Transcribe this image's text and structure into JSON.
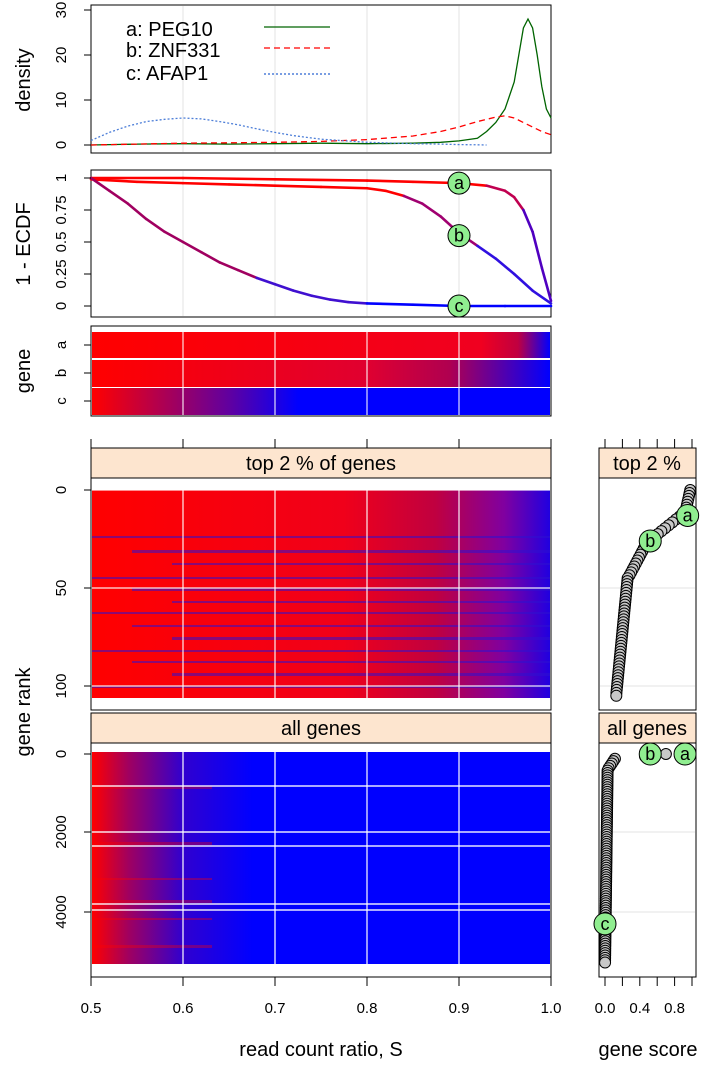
{
  "colors": {
    "red": "#ff0000",
    "blue": "#0000ff",
    "strip": "#fde5cf",
    "green": "#006400",
    "blueDot": "#4e7fd8",
    "badge": "#90ee90",
    "grid": "#e3e3e3"
  },
  "chart_data": [
    {
      "id": "density",
      "type": "line",
      "ylabel": "density",
      "ylim": [
        0,
        30
      ],
      "yticks": [
        "0",
        "10",
        "20",
        "30"
      ],
      "legend": {
        "position": "top-left"
      },
      "series": [
        {
          "name": "a: PEG10",
          "color": "#006400",
          "dash": "solid",
          "x": [
            0.5,
            0.55,
            0.6,
            0.65,
            0.7,
            0.75,
            0.8,
            0.85,
            0.88,
            0.9,
            0.92,
            0.93,
            0.94,
            0.95,
            0.96,
            0.965,
            0.97,
            0.975,
            0.98,
            0.985,
            0.99,
            0.995,
            1.0
          ],
          "y": [
            0,
            0.2,
            0.3,
            0.2,
            0.3,
            0.4,
            0.3,
            0.4,
            0.6,
            0.9,
            1.5,
            3,
            5,
            8,
            14,
            20,
            26,
            28,
            26,
            20,
            13,
            8,
            6
          ]
        },
        {
          "name": "b: ZNF331",
          "color": "#ff0000",
          "dash": "6,4",
          "x": [
            0.5,
            0.55,
            0.6,
            0.65,
            0.7,
            0.75,
            0.8,
            0.85,
            0.88,
            0.9,
            0.92,
            0.94,
            0.95,
            0.96,
            0.97,
            0.98,
            0.99,
            1.0
          ],
          "y": [
            0,
            0.2,
            0.4,
            0.5,
            0.6,
            0.8,
            1.2,
            2.0,
            3.0,
            4.0,
            5.2,
            6.2,
            6.5,
            6.0,
            5.0,
            4.0,
            3.0,
            2.3
          ]
        },
        {
          "name": "c: AFAP1",
          "color": "#4e7fd8",
          "dash": "2,2",
          "x": [
            0.5,
            0.52,
            0.54,
            0.56,
            0.58,
            0.6,
            0.62,
            0.64,
            0.66,
            0.68,
            0.7,
            0.72,
            0.75,
            0.8,
            0.85,
            0.88,
            0.9,
            0.92,
            0.93
          ],
          "y": [
            1.0,
            2.8,
            4.2,
            5.2,
            5.7,
            6.0,
            5.8,
            5.2,
            4.5,
            3.6,
            2.8,
            2.1,
            1.3,
            0.6,
            0.3,
            0.2,
            0.1,
            0.05,
            0
          ]
        }
      ]
    },
    {
      "id": "ecdf",
      "type": "line",
      "ylabel": "1 - ECDF",
      "ylim": [
        0,
        1
      ],
      "yticks": [
        "0",
        "0.25",
        "0.5",
        "0.75",
        "1"
      ],
      "series": [
        {
          "name": "a",
          "x": [
            0.5,
            0.6,
            0.7,
            0.8,
            0.85,
            0.9,
            0.93,
            0.95,
            0.96,
            0.97,
            0.98,
            0.99,
            1.0
          ],
          "y": [
            1.0,
            1.0,
            0.99,
            0.98,
            0.97,
            0.96,
            0.94,
            0.9,
            0.85,
            0.75,
            0.58,
            0.3,
            0.04
          ]
        },
        {
          "name": "b",
          "x": [
            0.5,
            0.55,
            0.6,
            0.65,
            0.7,
            0.75,
            0.8,
            0.82,
            0.84,
            0.86,
            0.88,
            0.9,
            0.92,
            0.94,
            0.96,
            0.98,
            1.0
          ],
          "y": [
            0.99,
            0.97,
            0.96,
            0.95,
            0.94,
            0.93,
            0.92,
            0.9,
            0.86,
            0.8,
            0.7,
            0.57,
            0.47,
            0.37,
            0.25,
            0.12,
            0.02
          ]
        },
        {
          "name": "c",
          "x": [
            0.5,
            0.52,
            0.54,
            0.56,
            0.58,
            0.6,
            0.62,
            0.64,
            0.66,
            0.68,
            0.7,
            0.72,
            0.74,
            0.76,
            0.78,
            0.8,
            0.85,
            0.9,
            0.95,
            1.0
          ],
          "y": [
            1.0,
            0.9,
            0.8,
            0.68,
            0.58,
            0.5,
            0.42,
            0.34,
            0.28,
            0.22,
            0.17,
            0.12,
            0.08,
            0.05,
            0.03,
            0.02,
            0.01,
            0.0,
            0.0,
            0.0
          ]
        }
      ],
      "markers": [
        {
          "label": "a",
          "x": 0.9,
          "y": 0.96
        },
        {
          "label": "b",
          "x": 0.9,
          "y": 0.55
        },
        {
          "label": "c",
          "x": 0.9,
          "y": 0.0
        }
      ]
    },
    {
      "id": "gene-heat",
      "type": "heatmap",
      "ylabel": "gene",
      "rows": [
        "a",
        "b",
        "c"
      ],
      "transition": [
        0.97,
        0.87,
        0.58
      ]
    },
    {
      "id": "top-heat",
      "type": "heatmap",
      "strip": "top 2 % of genes",
      "yticks": [
        "0",
        "50",
        "100"
      ],
      "ylim": [
        -2,
        106
      ]
    },
    {
      "id": "all-heat",
      "type": "heatmap",
      "strip": "all genes",
      "yticks": [
        "0",
        "2000",
        "4000"
      ],
      "ylim": [
        -100,
        5400
      ]
    },
    {
      "id": "top-score",
      "type": "scatter",
      "strip": "top 2 %",
      "markers": [
        {
          "label": "a",
          "x": 0.95,
          "y": 13
        },
        {
          "label": "b",
          "x": 0.52,
          "y": 26
        }
      ]
    },
    {
      "id": "all-score",
      "type": "scatter",
      "strip": "all genes",
      "markers": [
        {
          "label": "a",
          "x": 0.92,
          "y": 0
        },
        {
          "label": "b",
          "x": 0.52,
          "y": 0
        },
        {
          "label": "c",
          "x": 0.0,
          "y": 4300
        }
      ]
    }
  ],
  "axes": {
    "xticks": [
      "0.5",
      "0.6",
      "0.7",
      "0.8",
      "0.9",
      "1.0"
    ],
    "xlabel": "read count ratio, S",
    "ylabel_rank": "gene rank",
    "score_ticks": [
      "0.0",
      "0.4",
      "0.8"
    ],
    "score_label": "gene score"
  }
}
